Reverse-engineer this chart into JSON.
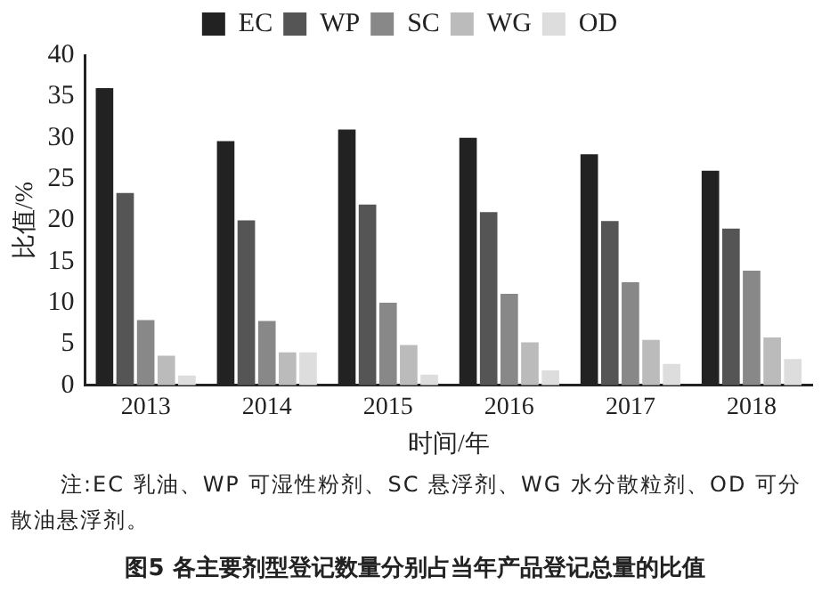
{
  "chart_data": {
    "type": "bar",
    "title": "图5 各主要剂型登记数量分别占当年产品登记总量的比值",
    "xlabel": "时间/年",
    "ylabel": "比值/%",
    "annotations": [
      "注:EC 乳油、WP 可湿性粉剂、SC 悬浮剂、WG 水分散粒剂、OD 可分散油悬浮剂。"
    ],
    "categories": [
      "2013",
      "2014",
      "2015",
      "2016",
      "2017",
      "2018"
    ],
    "series": [
      {
        "name": "EC",
        "color": "#222222",
        "values": [
          36,
          29.6,
          31,
          30,
          28,
          26
        ]
      },
      {
        "name": "WP",
        "color": "#555555",
        "values": [
          23.3,
          20,
          21.9,
          21,
          19.9,
          19
        ]
      },
      {
        "name": "SC",
        "color": "#888888",
        "values": [
          7.9,
          7.8,
          10,
          11.1,
          12.5,
          13.9
        ]
      },
      {
        "name": "WG",
        "color": "#bbbbbb",
        "values": [
          3.6,
          4,
          4.9,
          5.2,
          5.5,
          5.8
        ]
      },
      {
        "name": "OD",
        "color": "#dddddd",
        "values": [
          1.2,
          4,
          1.3,
          1.8,
          2.6,
          3.2
        ]
      }
    ],
    "ylim": [
      0,
      40
    ],
    "yticks": [
      0,
      5,
      10,
      15,
      20,
      25,
      30,
      35,
      40
    ],
    "grid": false,
    "legend": "top"
  }
}
